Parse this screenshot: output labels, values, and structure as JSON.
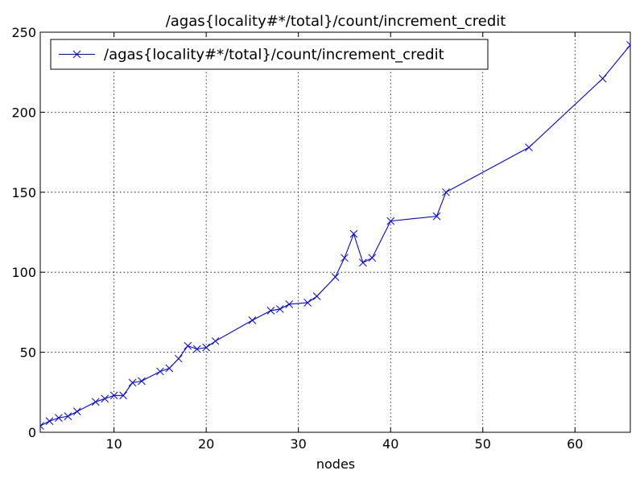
{
  "chart_data": {
    "type": "line",
    "title": "/agas{locality#*/total}/count/increment_credit",
    "xlabel": "nodes",
    "ylabel": "",
    "xlim": [
      2,
      66
    ],
    "ylim": [
      0,
      250
    ],
    "x_ticks": [
      10,
      20,
      30,
      40,
      50,
      60
    ],
    "y_ticks": [
      0,
      50,
      100,
      150,
      200,
      250
    ],
    "grid": true,
    "legend_position": "top-left",
    "series": [
      {
        "name": "/agas{locality#*/total}/count/increment_credit",
        "color": "#0000ff",
        "marker": "x",
        "x": [
          2,
          3,
          4,
          5,
          6,
          8,
          9,
          10,
          11,
          12,
          13,
          15,
          16,
          17,
          18,
          19,
          20,
          21,
          25,
          27,
          28,
          29,
          31,
          32,
          34,
          35,
          36,
          37,
          38,
          40,
          45,
          46,
          55,
          63,
          66
        ],
        "y": [
          4,
          7,
          9,
          10,
          13,
          19,
          21,
          23,
          23,
          31,
          32,
          38,
          40,
          46,
          54,
          52,
          53,
          57,
          70,
          76,
          77,
          80,
          81,
          85,
          97,
          109,
          124,
          106,
          109,
          132,
          135,
          150,
          178,
          221,
          242
        ]
      }
    ]
  }
}
